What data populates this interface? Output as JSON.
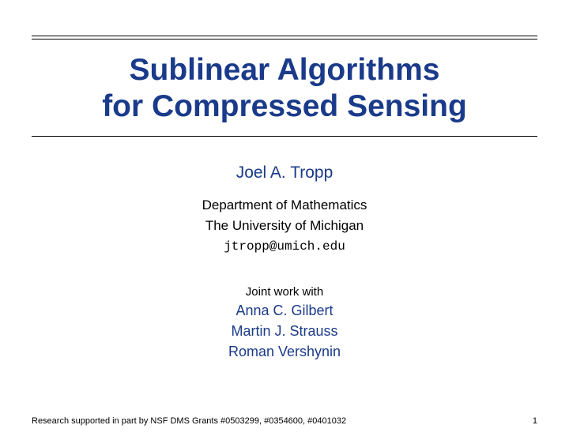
{
  "title": {
    "line1": "Sublinear Algorithms",
    "line2": "for Compressed Sensing"
  },
  "author": {
    "name": "Joel A. Tropp",
    "dept": "Department of Mathematics",
    "university": "The University of Michigan",
    "email": "jtropp@umich.edu"
  },
  "joint": {
    "label": "Joint work with",
    "collab1": "Anna C. Gilbert",
    "collab2": "Martin J. Strauss",
    "collab3": "Roman Vershynin"
  },
  "footer": {
    "support": "Research supported in part by NSF DMS Grants #0503299, #0354600, #0401032",
    "page": "1"
  },
  "colors": {
    "accent": "#1a3a8a",
    "text": "#000000",
    "background": "#ffffff"
  }
}
